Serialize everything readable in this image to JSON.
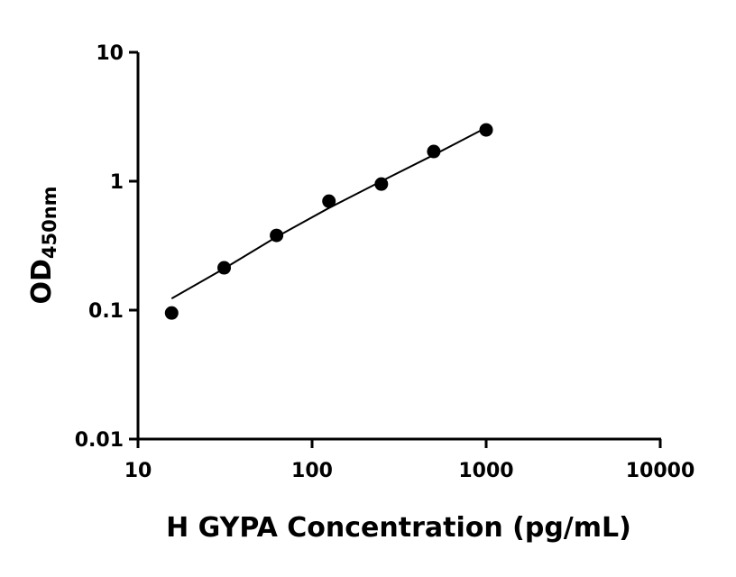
{
  "chart_data": {
    "type": "scatter",
    "xlabel": "H GYPA Concentration (pg/mL)",
    "ylabel": "OD",
    "ylabel_subscript": "450nm",
    "xscale": "log",
    "yscale": "log",
    "xlim": [
      10,
      10000
    ],
    "xticks": [
      10,
      100,
      1000,
      10000
    ],
    "ylim": [
      0.01,
      10
    ],
    "yticks": [
      0.01,
      0.1,
      1,
      10
    ],
    "series": [
      {
        "kind": "points",
        "color": "#000000",
        "x": [
          15.6,
          31.25,
          62.5,
          125,
          250,
          500,
          1000
        ],
        "values": [
          0.095,
          0.213,
          0.38,
          0.7,
          0.95,
          1.7,
          2.5
        ]
      },
      {
        "kind": "curve",
        "color": "#000000",
        "x": [
          15.6,
          31.25,
          62.5,
          125,
          250,
          500,
          1000
        ],
        "values": [
          0.123,
          0.21,
          0.37,
          0.62,
          1.0,
          1.6,
          2.6
        ]
      }
    ]
  }
}
